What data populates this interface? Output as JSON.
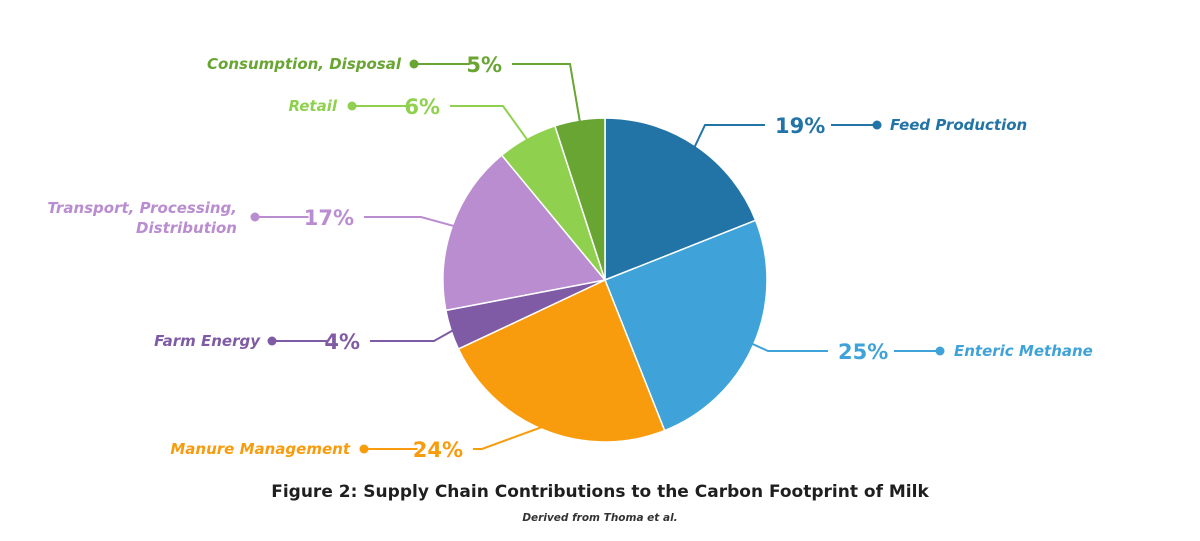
{
  "chart_data": {
    "type": "pie",
    "title": "Figure 2: Supply Chain Contributions to the Carbon Footprint of Milk",
    "subtitle": "Derived from Thoma et al.",
    "unit": "%",
    "slices": [
      {
        "label": "Feed Production",
        "value": 19,
        "display": "19%",
        "color": "#2374a6"
      },
      {
        "label": "Enteric Methane",
        "value": 25,
        "display": "25%",
        "color": "#3fa3d9"
      },
      {
        "label": "Manure Management",
        "value": 24,
        "display": "24%",
        "color": "#f89c0e"
      },
      {
        "label": "Farm Energy",
        "value": 4,
        "display": "4%",
        "color": "#7f5ba5"
      },
      {
        "label": "Transport, Processing, Distribution",
        "value": 17,
        "display": "17%",
        "color": "#b98dcf"
      },
      {
        "label": "Retail",
        "value": 6,
        "display": "6%",
        "color": "#8fd14f"
      },
      {
        "label": "Consumption, Disposal",
        "value": 5,
        "display": "5%",
        "color": "#69a533"
      }
    ]
  }
}
